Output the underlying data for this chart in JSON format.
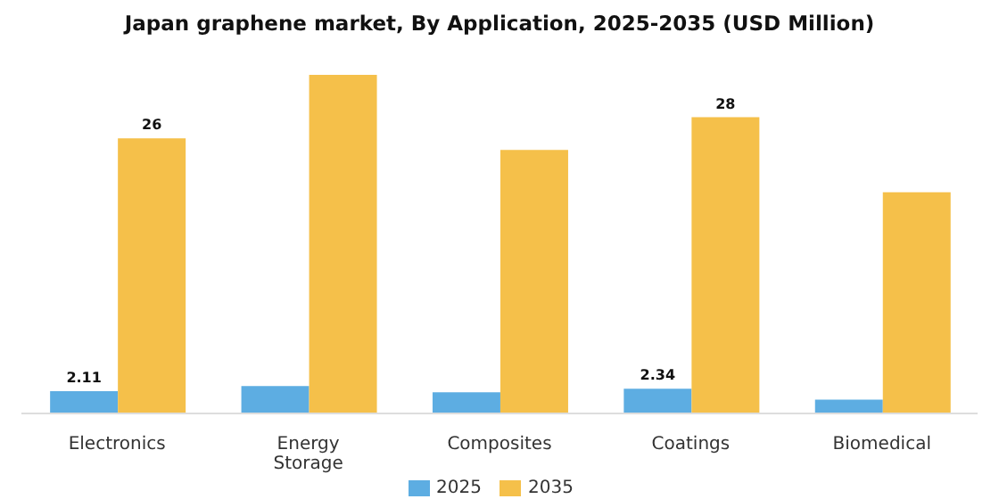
{
  "chart_data": {
    "type": "bar",
    "title": "Japan graphene market, By Application, 2025-2035 (USD Million)",
    "categories": [
      "Electronics",
      "Energy Storage",
      "Composites",
      "Coatings",
      "Biomedical"
    ],
    "series": [
      {
        "name": "2025",
        "color": "#5dade2",
        "values": [
          2.11,
          2.6,
          2.0,
          2.34,
          1.3
        ],
        "value_labels": [
          "2.11",
          null,
          null,
          "2.34",
          null
        ]
      },
      {
        "name": "2035",
        "color": "#f5c04a",
        "values": [
          26,
          32,
          24.9,
          28,
          20.9
        ],
        "value_labels": [
          "26",
          null,
          null,
          "28",
          null
        ]
      }
    ],
    "tick_labels": "x",
    "legend": "bottom"
  }
}
